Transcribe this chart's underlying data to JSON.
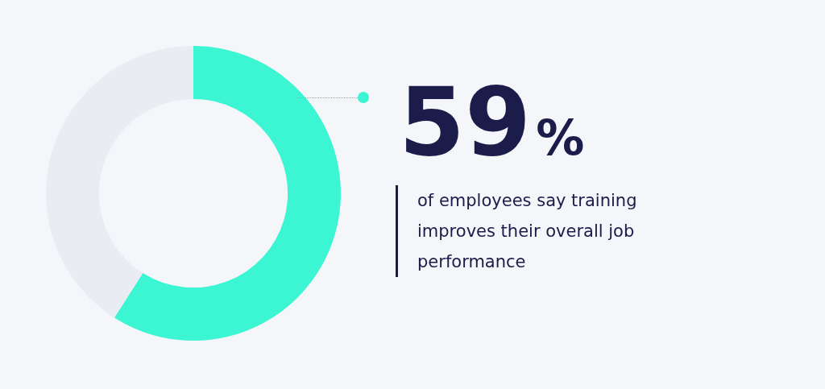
{
  "chart_data": {
    "type": "donut",
    "subtitle": "of employees say training improves their overall job performance",
    "categories": [
      null,
      null
    ],
    "values": [
      59,
      41
    ],
    "colors": [
      "#3cf5d2",
      "#e9edf3"
    ],
    "value_labels": [
      "59%",
      null
    ],
    "legend": false
  }
}
